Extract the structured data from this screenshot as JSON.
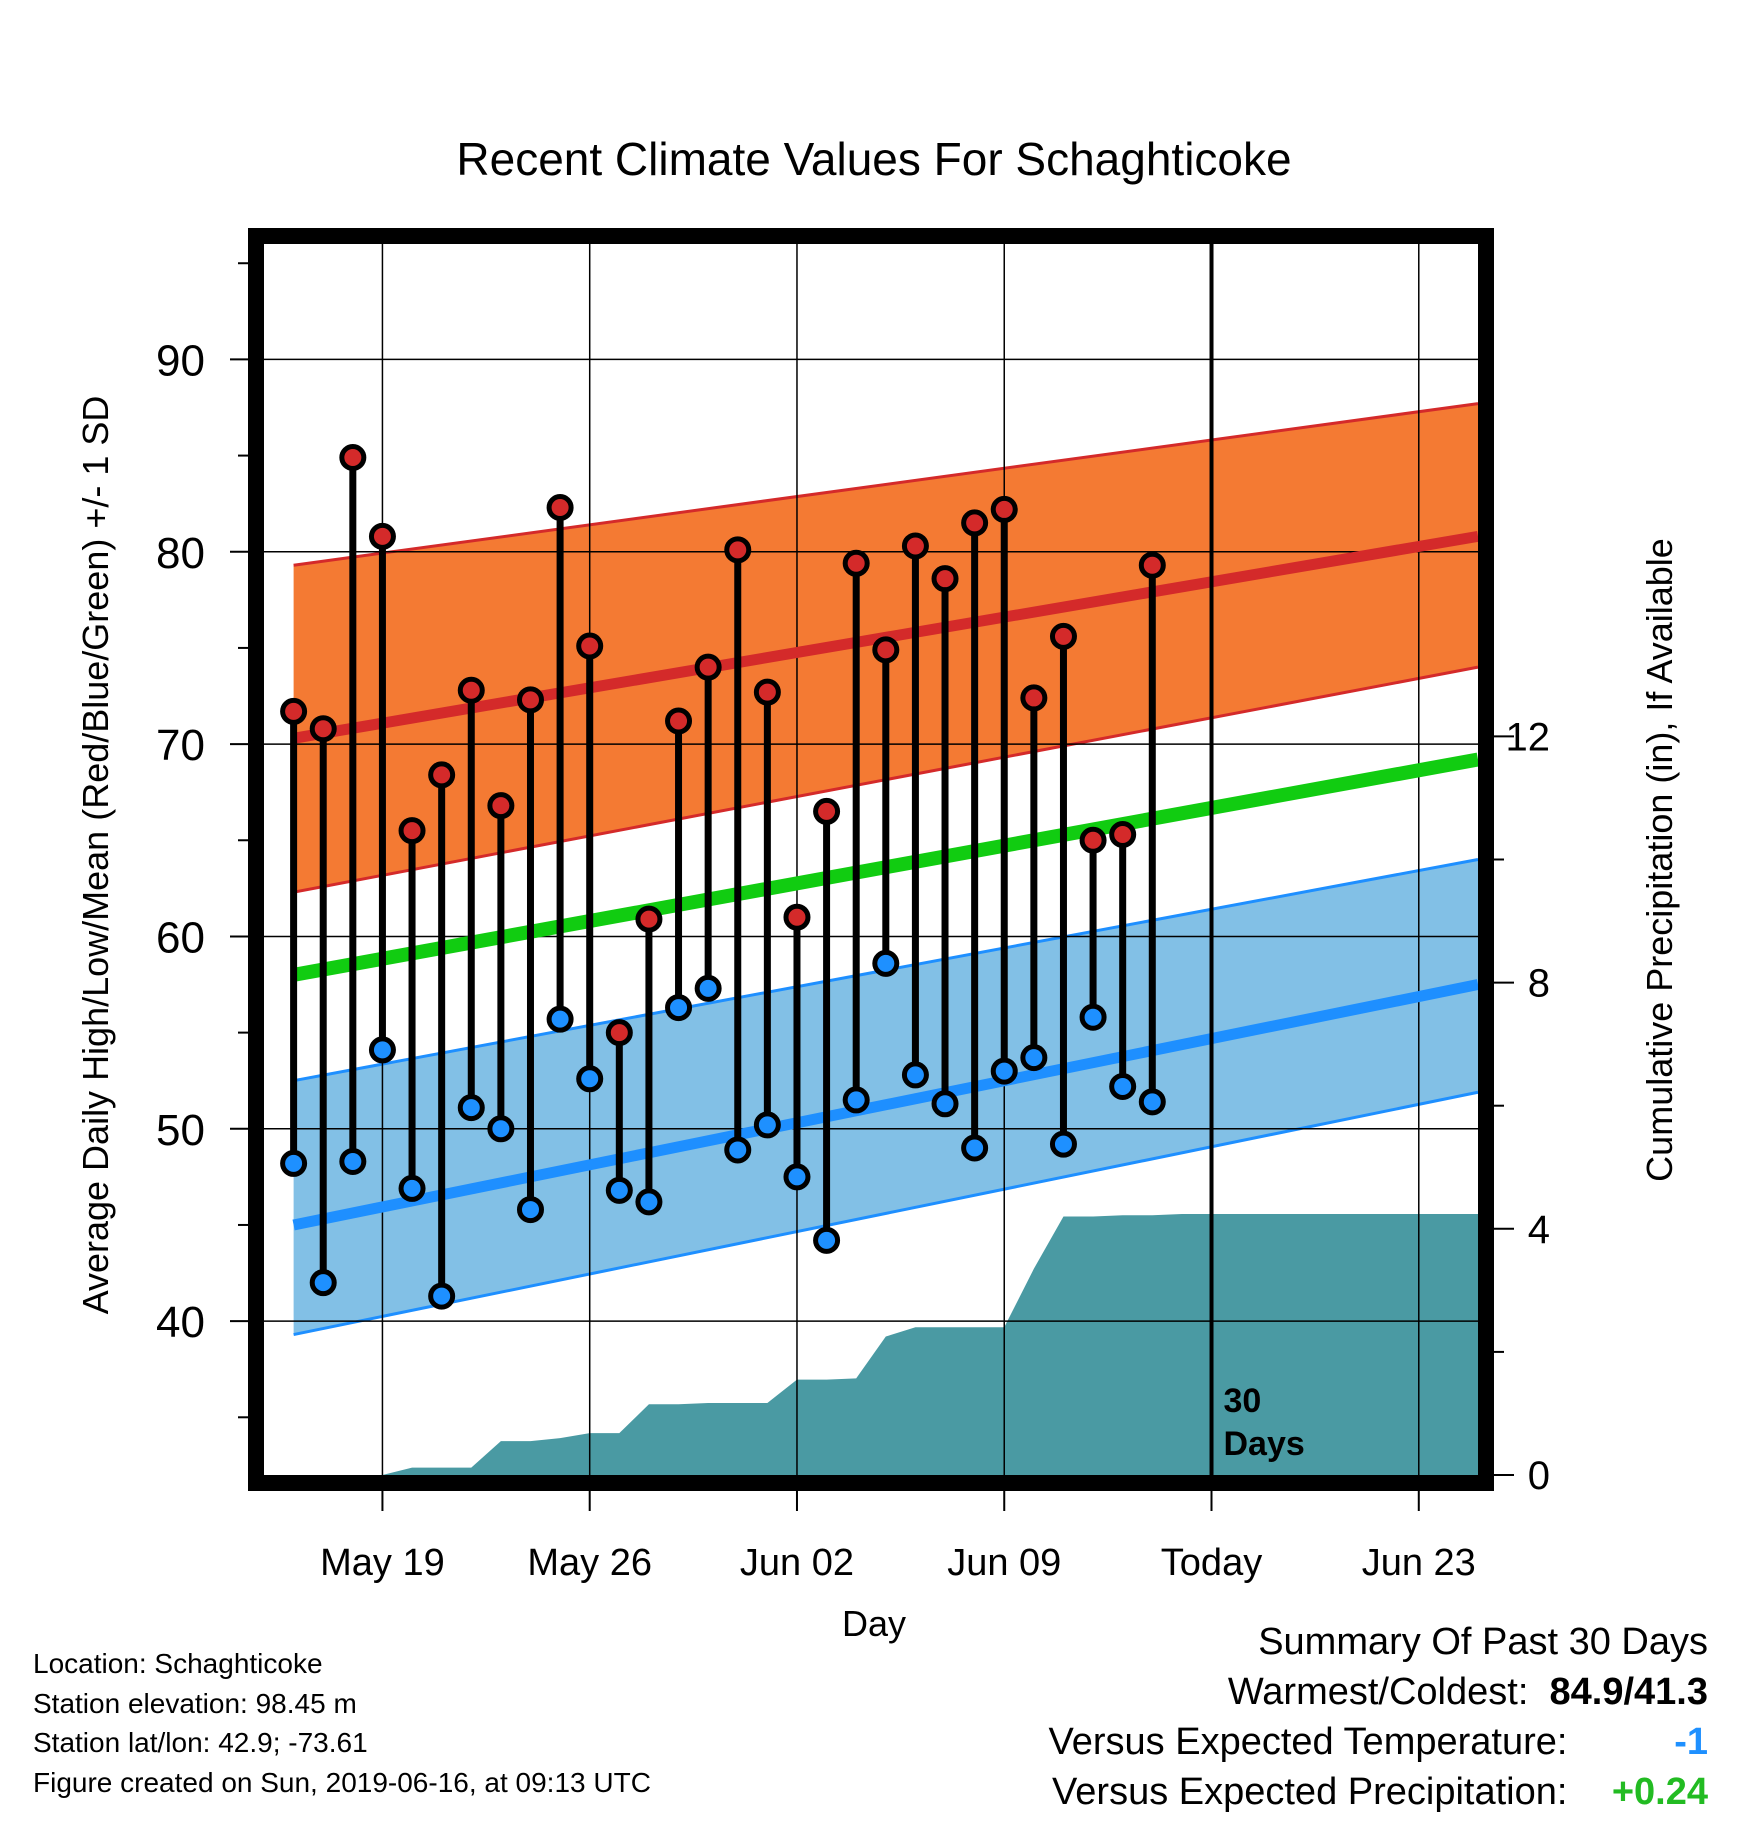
{
  "chart_data": {
    "type": "line",
    "title": "Recent Climate Values For Schaghticoke",
    "xlabel": "Day",
    "ylabel_left": "Average Daily High/Low/Mean (Red/Blue/Green) +/- 1 SD",
    "ylabel_right": "Cumulative Precipitation (in), If Available",
    "x_range": [
      "2019-05-15",
      "2019-06-25"
    ],
    "x_ticks": [
      {
        "date": "2019-05-19",
        "label": "May 19"
      },
      {
        "date": "2019-05-26",
        "label": "May 26"
      },
      {
        "date": "2019-06-02",
        "label": "Jun 02"
      },
      {
        "date": "2019-06-09",
        "label": "Jun 09"
      },
      {
        "date": "2019-06-16",
        "label": "Today"
      },
      {
        "date": "2019-06-23",
        "label": "Jun 23"
      }
    ],
    "ylim_left": [
      32,
      96
    ],
    "yticks_left": [
      40,
      50,
      60,
      70,
      80,
      90
    ],
    "ylim_right": [
      0,
      20
    ],
    "yticks_right": [
      0,
      4,
      8,
      12
    ],
    "today_marker": {
      "date": "2019-06-16",
      "label_line1": "30",
      "label_line2": "Days"
    },
    "normals_x": [
      "2019-05-16",
      "2019-06-25"
    ],
    "normal_high": {
      "mean": [
        70.3,
        80.8
      ],
      "upper": [
        79.3,
        87.7
      ],
      "lower": [
        62.3,
        74.0
      ],
      "color": "#d42a2a",
      "band_color": "#f47a33"
    },
    "normal_low": {
      "mean": [
        45.0,
        57.5
      ],
      "upper": [
        52.5,
        64.0
      ],
      "lower": [
        39.3,
        51.9
      ],
      "color": "#1e8fff",
      "band_color": "#82c0e6"
    },
    "normal_mean": {
      "mean": [
        58.0,
        69.2
      ],
      "color": "#11cc11"
    },
    "observed": {
      "dates": [
        "2019-05-16",
        "2019-05-17",
        "2019-05-18",
        "2019-05-19",
        "2019-05-20",
        "2019-05-21",
        "2019-05-22",
        "2019-05-23",
        "2019-05-24",
        "2019-05-25",
        "2019-05-26",
        "2019-05-27",
        "2019-05-28",
        "2019-05-29",
        "2019-05-30",
        "2019-05-31",
        "2019-06-01",
        "2019-06-02",
        "2019-06-03",
        "2019-06-04",
        "2019-06-05",
        "2019-06-06",
        "2019-06-07",
        "2019-06-08",
        "2019-06-09",
        "2019-06-10",
        "2019-06-11",
        "2019-06-12",
        "2019-06-13",
        "2019-06-14",
        "2019-06-15"
      ],
      "highs": [
        71.7,
        70.8,
        84.9,
        80.8,
        65.5,
        68.4,
        72.8,
        66.8,
        72.3,
        82.3,
        75.1,
        55.0,
        60.9,
        71.2,
        74.0,
        80.1,
        72.7,
        61.0,
        66.5,
        79.4,
        74.9,
        80.3,
        78.6,
        81.5,
        82.2,
        72.4,
        75.6,
        65.0,
        65.3,
        79.3,
        null
      ],
      "lows": [
        48.2,
        42.0,
        48.3,
        54.1,
        46.9,
        41.3,
        51.1,
        50.0,
        45.8,
        55.7,
        52.6,
        46.8,
        46.2,
        56.3,
        57.3,
        48.9,
        50.2,
        47.5,
        44.2,
        51.5,
        58.6,
        52.8,
        51.3,
        49.0,
        53.0,
        53.7,
        49.2,
        55.8,
        52.2,
        51.4,
        null
      ]
    },
    "precipitation": {
      "dates": [
        "2019-05-19",
        "2019-05-20",
        "2019-05-21",
        "2019-05-22",
        "2019-05-23",
        "2019-05-24",
        "2019-05-25",
        "2019-05-26",
        "2019-05-27",
        "2019-05-28",
        "2019-05-29",
        "2019-05-30",
        "2019-05-31",
        "2019-06-01",
        "2019-06-02",
        "2019-06-03",
        "2019-06-04",
        "2019-06-05",
        "2019-06-06",
        "2019-06-07",
        "2019-06-08",
        "2019-06-09",
        "2019-06-10",
        "2019-06-11",
        "2019-06-12",
        "2019-06-13",
        "2019-06-14",
        "2019-06-15",
        "2019-06-16",
        "2019-06-25"
      ],
      "cumulative": [
        0.0,
        0.12,
        0.12,
        0.12,
        0.55,
        0.55,
        0.6,
        0.68,
        0.68,
        1.15,
        1.15,
        1.17,
        1.17,
        1.17,
        1.55,
        1.55,
        1.57,
        2.25,
        2.4,
        2.4,
        2.4,
        2.4,
        3.35,
        4.2,
        4.2,
        4.22,
        4.22,
        4.24,
        4.24,
        4.24
      ],
      "color": "#4a9aa3"
    }
  },
  "footer": {
    "location": "Location: Schaghticoke",
    "elevation": "Station elevation: 98.45 m",
    "latlon": "Station lat/lon: 42.9; -73.61",
    "created": "Figure created on Sun, 2019-06-16, at 09:13 UTC"
  },
  "summary": {
    "title": "Summary Of Past 30 Days",
    "warm_cold_label": "Warmest/Coldest:",
    "warm_cold_value": "84.9/41.3",
    "temp_label": "Versus Expected Temperature:",
    "temp_value": "-1",
    "precip_label": "Versus Expected Precipitation:",
    "precip_value": "+0.24"
  }
}
